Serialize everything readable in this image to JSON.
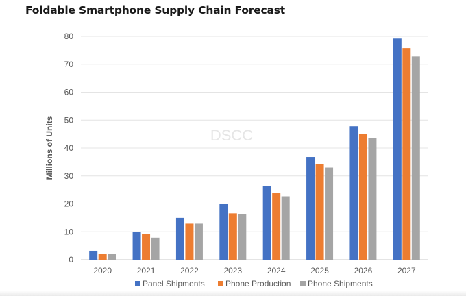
{
  "header": {
    "title": "Foldable Smartphone Supply Chain Forecast"
  },
  "watermark": "DSCC",
  "colors": {
    "panel": "#4472C4",
    "production": "#ED7D31",
    "shipments": "#A5A5A5",
    "grid": "#E4E4E4",
    "axis": "#C8C8C8",
    "text": "#595959"
  },
  "chart_data": {
    "type": "bar",
    "title": "Foldable Smartphone Supply Chain Forecast",
    "xlabel": "",
    "ylabel": "Millions of Units",
    "ylim": [
      0,
      80
    ],
    "yticks": [
      0,
      10,
      20,
      30,
      40,
      50,
      60,
      70,
      80
    ],
    "grid": true,
    "legend_position": "bottom",
    "categories": [
      "2020",
      "2021",
      "2022",
      "2023",
      "2024",
      "2025",
      "2026",
      "2027"
    ],
    "series": [
      {
        "name": "Panel Shipments",
        "color": "#4472C4",
        "values": [
          3.2,
          10.0,
          15.0,
          20.0,
          26.3,
          36.8,
          47.8,
          79.2
        ]
      },
      {
        "name": "Phone Production",
        "color": "#ED7D31",
        "values": [
          2.2,
          9.2,
          12.9,
          16.6,
          23.8,
          34.3,
          45.0,
          75.8
        ]
      },
      {
        "name": "Phone Shipments",
        "color": "#A5A5A5",
        "values": [
          2.2,
          7.9,
          12.9,
          16.3,
          22.7,
          33.0,
          43.5,
          72.8
        ]
      }
    ]
  }
}
